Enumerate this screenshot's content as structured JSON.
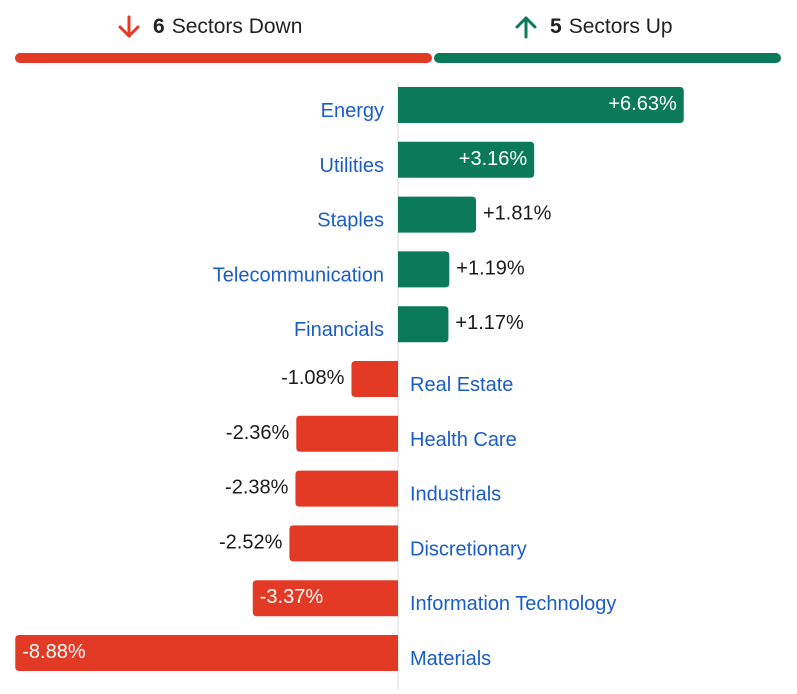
{
  "header": {
    "down_count": "6",
    "down_label": "Sectors Down",
    "up_count": "5",
    "up_label": "Sectors Up",
    "down_arrow_icon": "arrow-down-icon",
    "up_arrow_icon": "arrow-up-icon"
  },
  "colors": {
    "positive": "#0b7a5a",
    "negative": "#e33a26",
    "category_text": "#1a5dc8",
    "value_text": "#1a1a1a",
    "axis_line": "#d9d9d9"
  },
  "chart_data": {
    "type": "bar",
    "orientation": "horizontal",
    "categories": [
      "Energy",
      "Utilities",
      "Staples",
      "Telecommunication",
      "Financials",
      "Real Estate",
      "Health Care",
      "Industrials",
      "Discretionary",
      "Information Technology",
      "Materials"
    ],
    "values": [
      6.63,
      3.16,
      1.81,
      1.19,
      1.17,
      -1.08,
      -2.36,
      -2.38,
      -2.52,
      -3.37,
      -8.88
    ],
    "value_labels": [
      "+6.63%",
      "+3.16%",
      "+1.81%",
      "+1.19%",
      "+1.17%",
      "-1.08%",
      "-2.36%",
      "-2.38%",
      "-2.52%",
      "-3.37%",
      "-8.88%"
    ],
    "title": "",
    "xlabel": "",
    "ylabel": "",
    "grid": false,
    "legend": "none"
  }
}
